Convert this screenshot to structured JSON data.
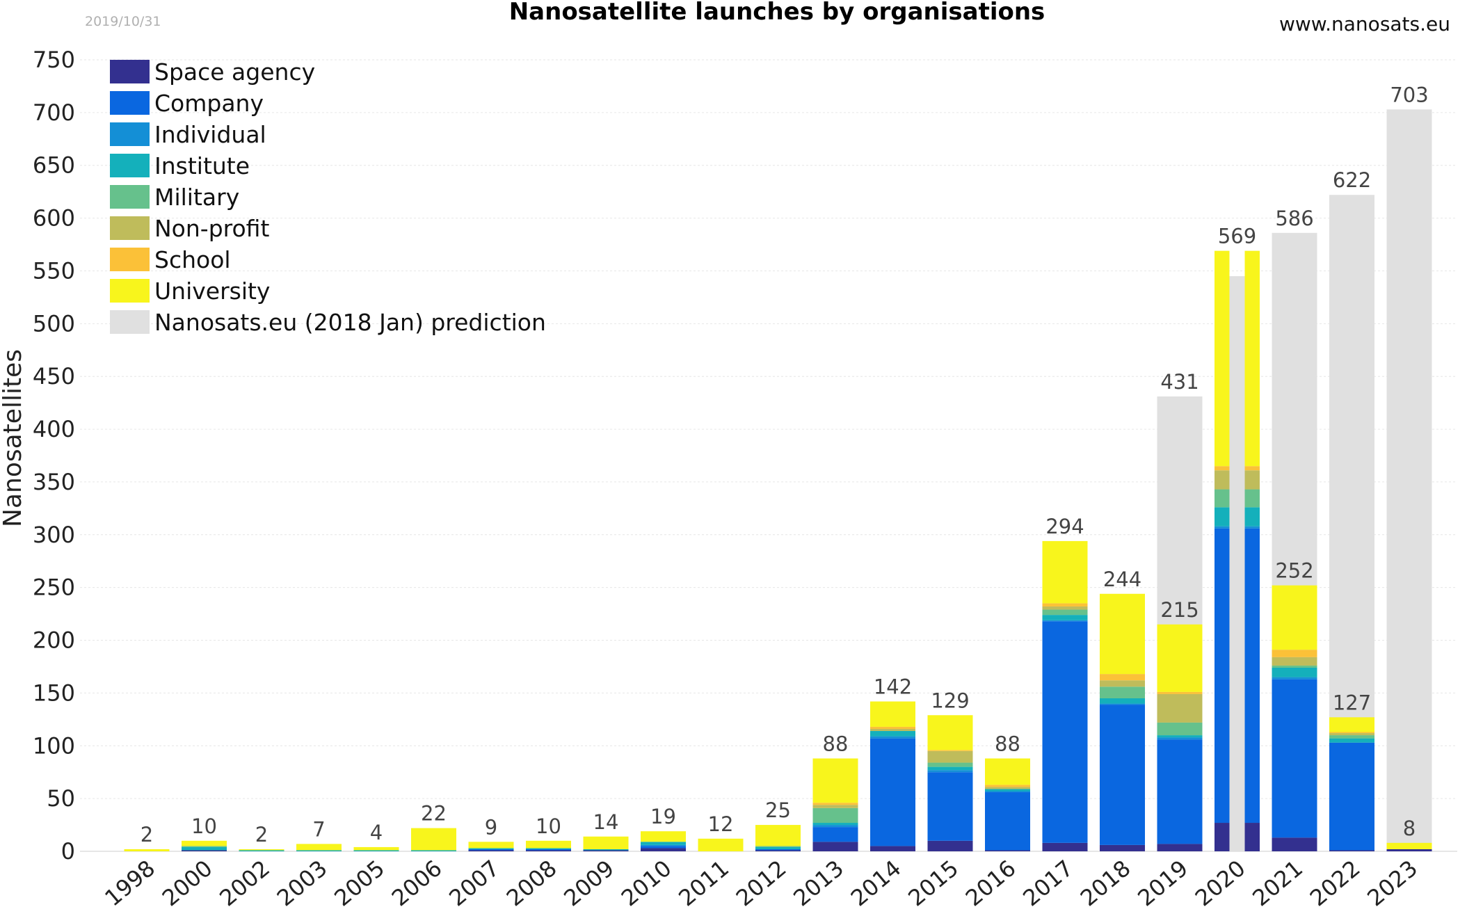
{
  "header": {
    "date": "2019/10/31",
    "title": "Nanosatellite launches by organisations",
    "site": "www.nanosats.eu"
  },
  "chart_data": {
    "type": "bar",
    "stacked": true,
    "title": "Nanosatellite launches by organisations",
    "xlabel": "",
    "ylabel": "Nanosatellites",
    "ylim": [
      0,
      750
    ],
    "yticks": [
      0,
      50,
      100,
      150,
      200,
      250,
      300,
      350,
      400,
      450,
      500,
      550,
      600,
      650,
      700,
      750
    ],
    "grid": true,
    "legend_position": "top-left",
    "categories": [
      "1998",
      "2000",
      "2002",
      "2003",
      "2005",
      "2006",
      "2007",
      "2008",
      "2009",
      "2010",
      "2011",
      "2012",
      "2013",
      "2014",
      "2015",
      "2016",
      "2017",
      "2018",
      "2019",
      "2020",
      "2021",
      "2022",
      "2023"
    ],
    "series": [
      {
        "name": "Space agency",
        "color": "#33308f",
        "values": [
          0,
          1,
          0,
          0,
          0,
          0,
          1,
          1,
          1,
          3,
          0,
          1,
          9,
          5,
          10,
          1,
          8,
          6,
          7,
          27,
          13,
          1,
          2
        ]
      },
      {
        "name": "Company",
        "color": "#0a67e0",
        "values": [
          0,
          0,
          0,
          0,
          0,
          0,
          1,
          1,
          0,
          2,
          0,
          1,
          14,
          102,
          65,
          55,
          210,
          133,
          99,
          279,
          150,
          102,
          0
        ]
      },
      {
        "name": "Individual",
        "color": "#148fd6",
        "values": [
          0,
          0,
          0,
          0,
          0,
          0,
          0,
          0,
          0,
          1,
          0,
          0,
          2,
          2,
          2,
          1,
          1,
          1,
          2,
          2,
          2,
          0,
          0
        ]
      },
      {
        "name": "Institute",
        "color": "#14b0bb",
        "values": [
          0,
          3,
          1,
          1,
          1,
          1,
          1,
          1,
          1,
          3,
          0,
          2,
          2,
          5,
          3,
          2,
          5,
          5,
          2,
          18,
          9,
          4,
          0
        ]
      },
      {
        "name": "Military",
        "color": "#66c18c",
        "values": [
          0,
          1,
          0,
          0,
          0,
          0,
          0,
          0,
          0,
          0,
          0,
          1,
          14,
          0,
          4,
          0,
          5,
          11,
          12,
          17,
          2,
          3,
          0
        ]
      },
      {
        "name": "Non-profit",
        "color": "#bfbc5b",
        "values": [
          0,
          0,
          0,
          0,
          0,
          0,
          0,
          0,
          0,
          0,
          0,
          0,
          3,
          2,
          11,
          2,
          3,
          6,
          27,
          18,
          8,
          2,
          0
        ]
      },
      {
        "name": "School",
        "color": "#fbc138",
        "values": [
          0,
          0,
          0,
          0,
          0,
          0,
          0,
          0,
          0,
          0,
          0,
          0,
          2,
          2,
          1,
          2,
          3,
          6,
          2,
          4,
          7,
          1,
          0
        ]
      },
      {
        "name": "University",
        "color": "#f8f51c",
        "values": [
          2,
          5,
          1,
          6,
          3,
          21,
          6,
          7,
          12,
          10,
          12,
          20,
          42,
          24,
          33,
          25,
          59,
          76,
          64,
          204,
          61,
          14,
          6
        ]
      }
    ],
    "totals": [
      2,
      10,
      2,
      7,
      4,
      22,
      9,
      10,
      14,
      19,
      12,
      25,
      88,
      142,
      129,
      88,
      294,
      244,
      215,
      569,
      252,
      127,
      8
    ],
    "prediction": {
      "name": "Nanosats.eu (2018 Jan) prediction",
      "color": "#e0e0e0",
      "categories": [
        "2019",
        "2020",
        "2021",
        "2022",
        "2023"
      ],
      "values": [
        431,
        545,
        586,
        622,
        703
      ],
      "labels": [
        "431",
        "",
        "586",
        "622",
        "703"
      ]
    }
  }
}
